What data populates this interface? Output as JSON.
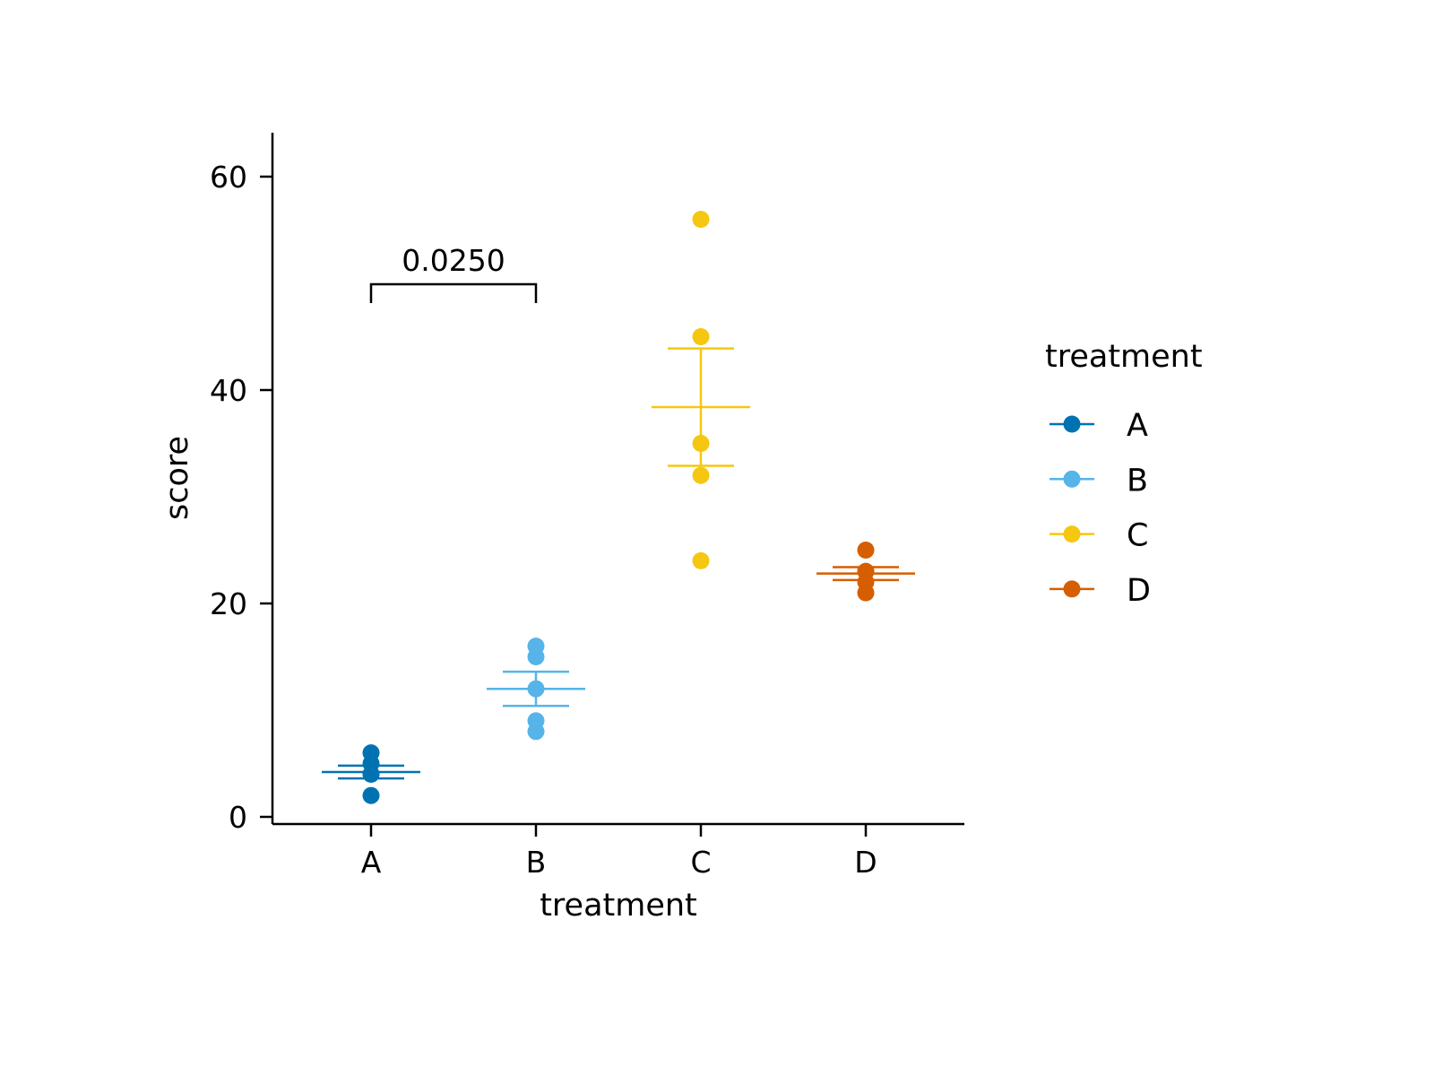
{
  "chart_data": {
    "type": "scatter",
    "subtype": "dot-plot with mean and standard error bars",
    "title": "",
    "xlabel": "treatment",
    "ylabel": "score",
    "categories": [
      "A",
      "B",
      "C",
      "D"
    ],
    "ylim": [
      -0.7,
      64
    ],
    "yticks": [
      0,
      20,
      40,
      60
    ],
    "ytick_labels": [
      "0",
      "20",
      "40",
      "60"
    ],
    "grid": false,
    "series": [
      {
        "name": "A",
        "color": "#0072B2",
        "values": [
          2,
          4,
          4,
          5,
          6
        ],
        "mean": 4.2,
        "se_low": 3.6,
        "se_high": 4.8
      },
      {
        "name": "B",
        "color": "#56B4E9",
        "values": [
          8,
          9,
          12,
          15,
          16
        ],
        "mean": 12.0,
        "se_low": 10.4,
        "se_high": 13.6
      },
      {
        "name": "C",
        "color": "#F5C710",
        "values": [
          24,
          32,
          35,
          45,
          56
        ],
        "mean": 38.4,
        "se_low": 32.9,
        "se_high": 43.9
      },
      {
        "name": "D",
        "color": "#D55E00",
        "values": [
          21,
          22,
          23,
          23,
          25
        ],
        "mean": 22.8,
        "se_low": 22.2,
        "se_high": 23.4
      }
    ],
    "annotations": [
      {
        "type": "significance-bracket",
        "from": "A",
        "to": "B",
        "y": 50,
        "label": "0.0250"
      }
    ],
    "legend": {
      "title": "treatment",
      "placement": "right",
      "entries": [
        "A",
        "B",
        "C",
        "D"
      ]
    }
  }
}
